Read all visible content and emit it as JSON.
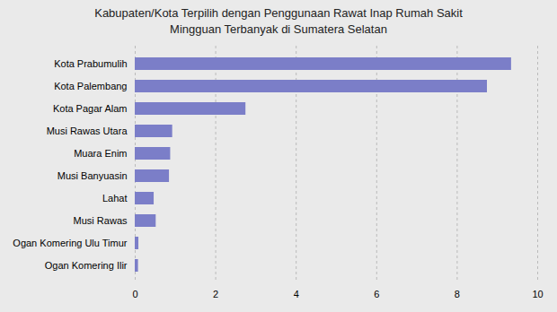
{
  "chart_data": {
    "type": "bar",
    "title": "Kabupaten/Kota Terpilih dengan Penggunaan Rawat Inap Rumah Sakit\nMingguan Terbanyak di Sumatera Selatan",
    "orientation": "horizontal",
    "categories": [
      "Ogan Komering Ilir",
      "Ogan Komering Ulu Timur",
      "Musi Rawas",
      "Lahat",
      "Musi Banyuasin",
      "Muara Enim",
      "Musi Rawas Utara",
      "Kota Pagar Alam",
      "Kota Palembang",
      "Kota Prabumulih"
    ],
    "values": [
      0.08,
      0.09,
      0.52,
      0.47,
      0.85,
      0.88,
      0.93,
      2.75,
      8.75,
      9.35
    ],
    "color": "#7b7ec8",
    "background_color": "#eaeaea",
    "xlim": [
      0,
      10
    ],
    "xticks": [
      0,
      2,
      4,
      6,
      8,
      10
    ],
    "grid": true
  }
}
